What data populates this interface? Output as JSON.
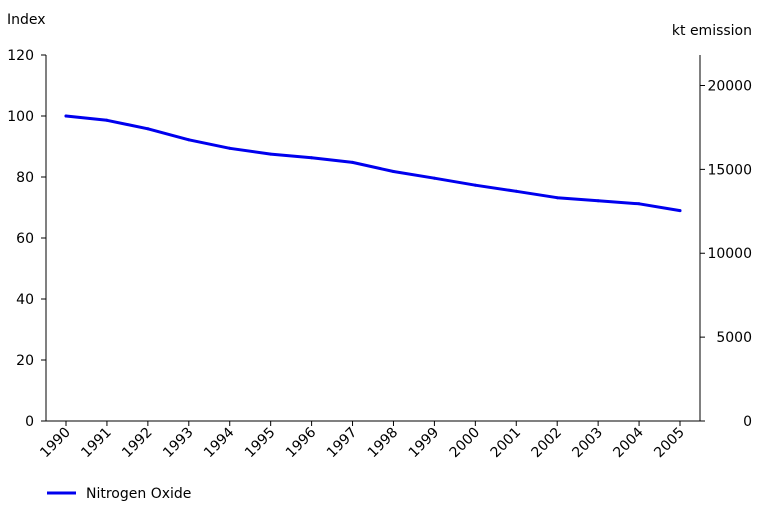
{
  "chart_data": {
    "type": "line",
    "title": "",
    "y_left_label": "Index",
    "y_right_label": "kt emission",
    "x": [
      "1990",
      "1991",
      "1992",
      "1993",
      "1994",
      "1995",
      "1996",
      "1997",
      "1998",
      "1999",
      "2000",
      "2001",
      "2002",
      "2003",
      "2004",
      "2005"
    ],
    "y_left_ticks": [
      0,
      20,
      40,
      60,
      80,
      100,
      120
    ],
    "y_right_ticks": [
      0,
      5000,
      10000,
      15000,
      20000
    ],
    "y_left_lim": [
      0,
      120
    ],
    "y_right_lim": [
      0,
      21818
    ],
    "grid": false,
    "legend_position": "bottom-left",
    "series": [
      {
        "name": "Nitrogen Oxide",
        "color": "#0000ee",
        "axis": "left",
        "values": [
          100,
          98.6,
          95.8,
          92.2,
          89.4,
          87.5,
          86.3,
          84.8,
          81.8,
          79.6,
          77.3,
          75.3,
          73.2,
          72.2,
          71.2,
          69
        ]
      }
    ]
  }
}
